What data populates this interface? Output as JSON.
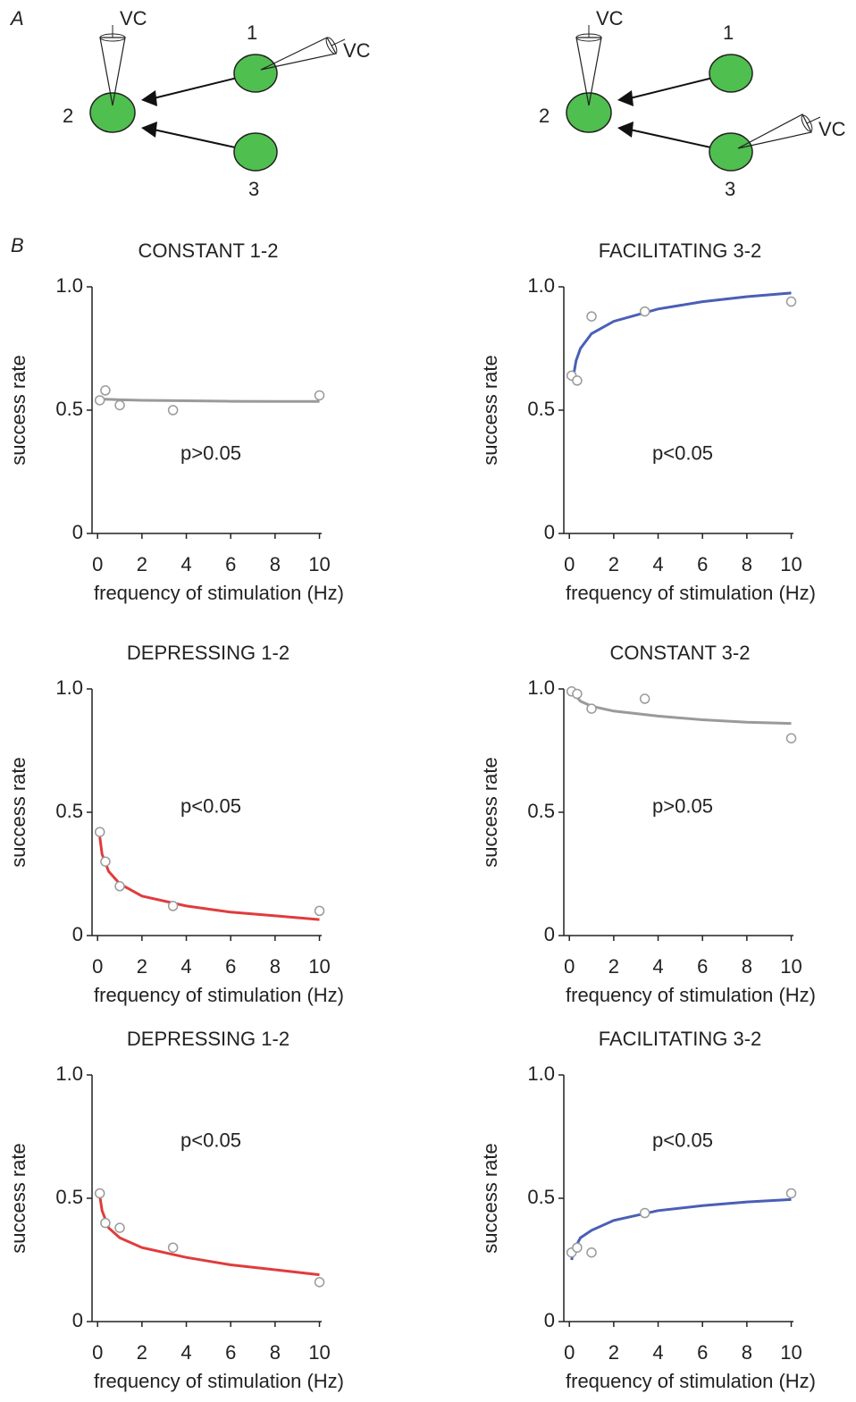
{
  "diagram": {
    "label": "A",
    "left": {
      "cells": [
        "1",
        "2",
        "3"
      ],
      "pipettes": [
        "VC",
        "VC"
      ]
    },
    "right": {
      "cells": [
        "1",
        "2",
        "3"
      ],
      "pipettes": [
        "VC",
        "VC"
      ]
    }
  },
  "panel_b_label": "B",
  "chart_data": [
    {
      "type": "scatter",
      "title": "CONSTANT 1-2",
      "xlabel": "frequency of stimulation (Hz)",
      "ylabel": "success rate",
      "annotation": "p>0.05",
      "xlim": [
        -0.25,
        10.1
      ],
      "ylim": [
        0,
        1
      ],
      "xticks": [
        0,
        2,
        4,
        6,
        8,
        10
      ],
      "yticks": [
        0,
        0.5,
        {
          "value": 1,
          "label": "1.0"
        }
      ],
      "series": [
        {
          "type": "scatter",
          "color": "#9a9a9a",
          "x": [
            0.1,
            0.35,
            1,
            3.4,
            10
          ],
          "values": [
            0.54,
            0.58,
            0.52,
            0.5,
            0.56
          ]
        },
        {
          "type": "line",
          "color": "#9a9a9a",
          "x": [
            0.15,
            1,
            2,
            4,
            6,
            8,
            10
          ],
          "values": [
            0.545,
            0.542,
            0.54,
            0.538,
            0.536,
            0.535,
            0.535
          ]
        }
      ]
    },
    {
      "type": "scatter",
      "title": "FACILITATING 3-2",
      "xlabel": "frequency of stimulation (Hz)",
      "ylabel": "success rate",
      "annotation": "p<0.05",
      "xlim": [
        -0.25,
        10.1
      ],
      "ylim": [
        0,
        1
      ],
      "xticks": [
        0,
        2,
        4,
        6,
        8,
        10
      ],
      "yticks": [
        0,
        0.5,
        {
          "value": 1,
          "label": "1.0"
        }
      ],
      "series": [
        {
          "type": "scatter",
          "color": "#9a9a9a",
          "x": [
            0.1,
            0.35,
            1,
            3.4,
            10
          ],
          "values": [
            0.64,
            0.62,
            0.88,
            0.9,
            0.94
          ]
        },
        {
          "type": "line",
          "color": "#4a5fb5",
          "x": [
            0.15,
            0.3,
            0.5,
            1,
            2,
            4,
            6,
            8,
            10
          ],
          "values": [
            0.62,
            0.7,
            0.75,
            0.81,
            0.86,
            0.91,
            0.94,
            0.96,
            0.975
          ]
        }
      ]
    },
    {
      "type": "scatter",
      "title": "DEPRESSING 1-2",
      "xlabel": "frequency of stimulation (Hz)",
      "ylabel": "success rate",
      "annotation": "p<0.05",
      "xlim": [
        -0.25,
        10.1
      ],
      "ylim": [
        0,
        1
      ],
      "xticks": [
        0,
        2,
        4,
        6,
        8,
        10
      ],
      "yticks": [
        0,
        0.5,
        {
          "value": 1,
          "label": "1.0"
        }
      ],
      "series": [
        {
          "type": "scatter",
          "color": "#9a9a9a",
          "x": [
            0.1,
            0.35,
            1,
            3.4,
            10
          ],
          "values": [
            0.42,
            0.3,
            0.2,
            0.12,
            0.1
          ]
        },
        {
          "type": "line",
          "color": "#e03c3c",
          "x": [
            0.1,
            0.2,
            0.5,
            1,
            2,
            4,
            6,
            8,
            10
          ],
          "values": [
            0.4,
            0.33,
            0.26,
            0.21,
            0.16,
            0.12,
            0.095,
            0.08,
            0.065
          ]
        }
      ]
    },
    {
      "type": "scatter",
      "title": "CONSTANT 3-2",
      "xlabel": "frequency of stimulation (Hz)",
      "ylabel": "success rate",
      "annotation": "p>0.05",
      "xlim": [
        -0.25,
        10.1
      ],
      "ylim": [
        0,
        1
      ],
      "xticks": [
        0,
        2,
        4,
        6,
        8,
        10
      ],
      "yticks": [
        0,
        0.5,
        {
          "value": 1,
          "label": "1.0"
        }
      ],
      "series": [
        {
          "type": "scatter",
          "color": "#9a9a9a",
          "x": [
            0.1,
            0.35,
            1,
            3.4,
            10
          ],
          "values": [
            0.99,
            0.98,
            0.92,
            0.96,
            0.8
          ]
        },
        {
          "type": "line",
          "color": "#9a9a9a",
          "x": [
            0.1,
            0.5,
            1,
            2,
            4,
            6,
            8,
            10
          ],
          "values": [
            0.99,
            0.95,
            0.93,
            0.91,
            0.89,
            0.875,
            0.865,
            0.86
          ]
        }
      ]
    },
    {
      "type": "scatter",
      "title": "DEPRESSING 1-2",
      "xlabel": "frequency of stimulation (Hz)",
      "ylabel": "success rate",
      "annotation": "p<0.05",
      "xlim": [
        -0.25,
        10.1
      ],
      "ylim": [
        0,
        1
      ],
      "xticks": [
        0,
        2,
        4,
        6,
        8,
        10
      ],
      "yticks": [
        0,
        0.5,
        {
          "value": 1,
          "label": "1.0"
        }
      ],
      "series": [
        {
          "type": "scatter",
          "color": "#9a9a9a",
          "x": [
            0.1,
            0.35,
            1,
            3.4,
            10
          ],
          "values": [
            0.52,
            0.4,
            0.38,
            0.3,
            0.16
          ]
        },
        {
          "type": "line",
          "color": "#e03c3c",
          "x": [
            0.1,
            0.2,
            0.5,
            1,
            2,
            4,
            6,
            8,
            10
          ],
          "values": [
            0.51,
            0.45,
            0.38,
            0.34,
            0.3,
            0.26,
            0.23,
            0.21,
            0.19
          ]
        }
      ]
    },
    {
      "type": "scatter",
      "title": "FACILITATING 3-2",
      "xlabel": "frequency of stimulation (Hz)",
      "ylabel": "success rate",
      "annotation": "p<0.05",
      "xlim": [
        -0.25,
        10.1
      ],
      "ylim": [
        0,
        1
      ],
      "xticks": [
        0,
        2,
        4,
        6,
        8,
        10
      ],
      "yticks": [
        0,
        0.5,
        {
          "value": 1,
          "label": "1.0"
        }
      ],
      "series": [
        {
          "type": "scatter",
          "color": "#9a9a9a",
          "x": [
            0.1,
            0.35,
            1,
            3.4,
            10
          ],
          "values": [
            0.28,
            0.3,
            0.28,
            0.44,
            0.52
          ]
        },
        {
          "type": "line",
          "color": "#4a5fb5",
          "x": [
            0.1,
            0.2,
            0.5,
            1,
            2,
            4,
            6,
            8,
            10
          ],
          "values": [
            0.25,
            0.29,
            0.34,
            0.37,
            0.41,
            0.45,
            0.47,
            0.485,
            0.495
          ]
        }
      ]
    }
  ]
}
